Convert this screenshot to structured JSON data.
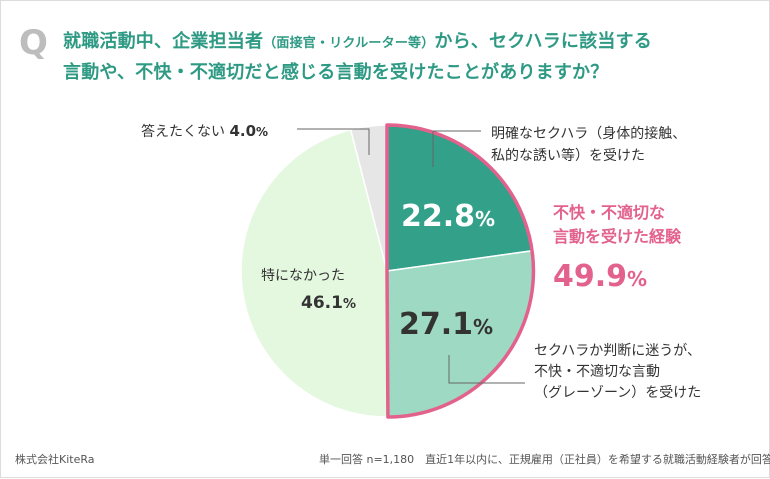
{
  "question": {
    "mark": "Q",
    "line1_a": "就職活動中、企業担当者",
    "line1_b": "（面接官・リクルーター等）",
    "line1_c": "から、セクハラに該当する",
    "line2": "言動や、不快・不適切だと感じる言動を受けたことがありますか？"
  },
  "chart_data": {
    "type": "pie",
    "start": "12 o'clock, clockwise",
    "slices": [
      {
        "label_lines": [
          "明確なセクハラ（身体的接触、",
          "私的な誘い等）を受けた"
        ],
        "value": 22.8,
        "display": "22.8",
        "color": "#33a08a"
      },
      {
        "label_lines": [
          "セクハラか判断に迷うが、",
          "不快・不適切な言動",
          "（グレーゾーン）を受けた"
        ],
        "value": 27.1,
        "display": "27.1",
        "color": "#9ed9c3"
      },
      {
        "label_lines": [
          "特になかった"
        ],
        "value": 46.1,
        "display": "46.1",
        "color": "#e4f8e0"
      },
      {
        "label_lines": [
          "答えたくない"
        ],
        "value": 4.0,
        "display": "4.0",
        "color": "#e6e6e6"
      }
    ],
    "highlight": {
      "lines": [
        "不快・不適切な",
        "言動を受けた経験"
      ],
      "value": 49.9,
      "display": "49.9",
      "color": "#e3628d"
    },
    "unit": "%"
  },
  "footer": {
    "company": "株式会社KiteRa",
    "note": "単一回答 n=1,180　直近1年以内に、正規雇用（正社員）を希望する就職活動経験者が回答"
  }
}
